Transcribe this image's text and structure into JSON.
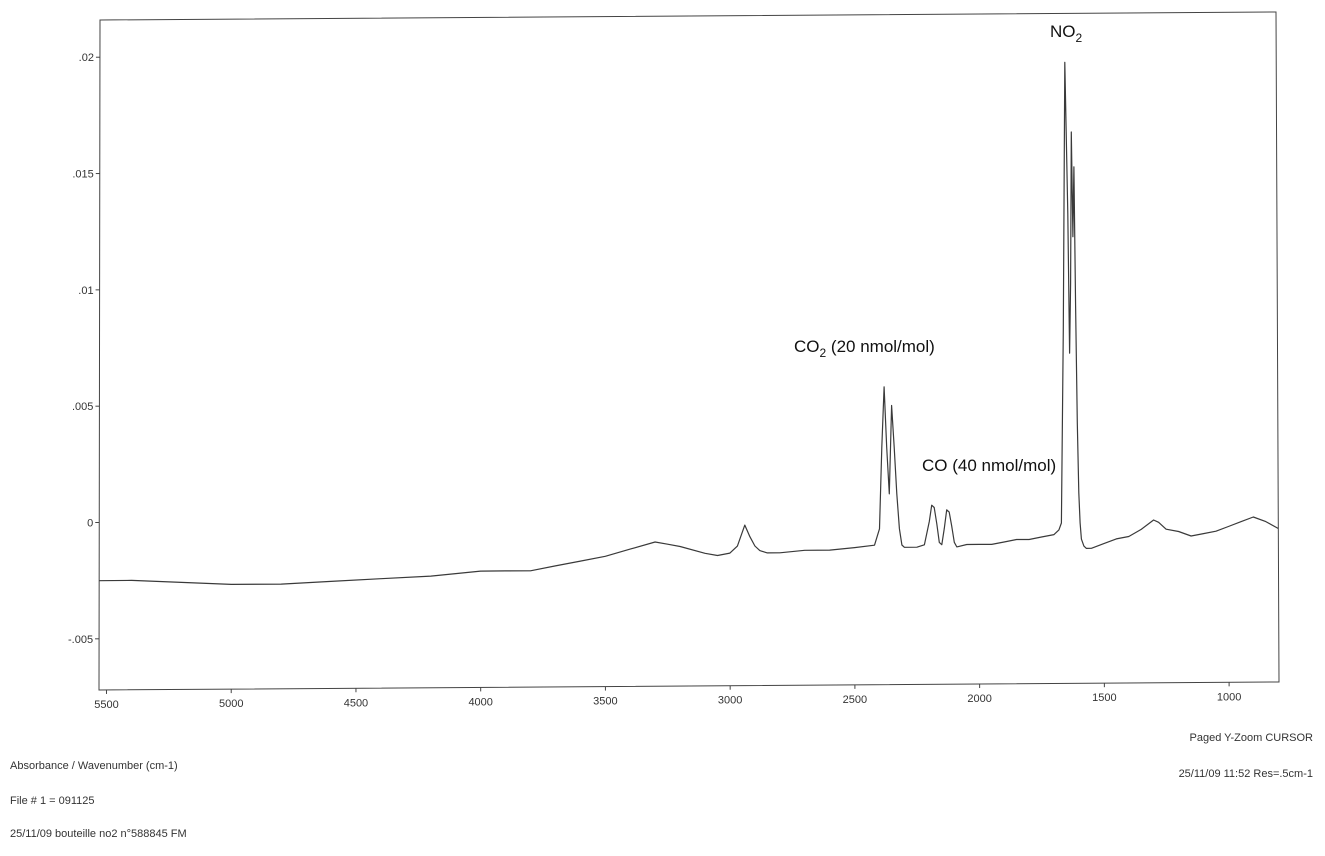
{
  "chart_data": {
    "type": "line",
    "title": "",
    "xlabel": "",
    "ylabel": "",
    "x_reversed": true,
    "xlim": [
      5530,
      800
    ],
    "ylim": [
      -0.0072,
      0.0216
    ],
    "x_ticks": [
      {
        "value": 5500,
        "label": "5500"
      },
      {
        "value": 5000,
        "label": "5000"
      },
      {
        "value": 4500,
        "label": "4500"
      },
      {
        "value": 4000,
        "label": "4000"
      },
      {
        "value": 3500,
        "label": "3500"
      },
      {
        "value": 3000,
        "label": "3000"
      },
      {
        "value": 2500,
        "label": "2500"
      },
      {
        "value": 2000,
        "label": "2000"
      },
      {
        "value": 1500,
        "label": "1500"
      },
      {
        "value": 1000,
        "label": "1000"
      }
    ],
    "y_ticks": [
      {
        "value": 0.02,
        "label": ".02"
      },
      {
        "value": 0.015,
        "label": ".015"
      },
      {
        "value": 0.01,
        "label": ".01"
      },
      {
        "value": 0.005,
        "label": ".005"
      },
      {
        "value": 0,
        "label": "0"
      },
      {
        "value": -0.005,
        "label": "-.005"
      }
    ],
    "grid": false,
    "series": [
      {
        "color": "#3a3a3a",
        "x": [
          5530,
          5400,
          5200,
          5000,
          4800,
          4600,
          4400,
          4200,
          4000,
          3900,
          3800,
          3700,
          3600,
          3500,
          3400,
          3300,
          3250,
          3200,
          3100,
          3050,
          3000,
          2970,
          2940,
          2920,
          2900,
          2880,
          2850,
          2800,
          2700,
          2600,
          2500,
          2420,
          2400,
          2390,
          2380,
          2370,
          2360,
          2350,
          2340,
          2330,
          2320,
          2310,
          2300,
          2250,
          2220,
          2200,
          2190,
          2180,
          2170,
          2160,
          2150,
          2140,
          2130,
          2120,
          2110,
          2100,
          2090,
          2050,
          2000,
          1950,
          1900,
          1850,
          1800,
          1750,
          1700,
          1680,
          1670,
          1660,
          1650,
          1640,
          1635,
          1630,
          1625,
          1620,
          1615,
          1610,
          1605,
          1600,
          1595,
          1590,
          1580,
          1570,
          1550,
          1500,
          1450,
          1400,
          1350,
          1300,
          1280,
          1250,
          1200,
          1150,
          1100,
          1050,
          1000,
          950,
          900,
          850,
          800
        ],
        "y": [
          -0.0025,
          -0.0025,
          -0.0026,
          -0.0027,
          -0.0027,
          -0.0026,
          -0.0025,
          -0.0024,
          -0.0022,
          -0.0022,
          -0.0022,
          -0.002,
          -0.0018,
          -0.0016,
          -0.0013,
          -0.001,
          -0.0011,
          -0.0012,
          -0.0015,
          -0.0016,
          -0.0015,
          -0.0012,
          -0.0003,
          -0.0008,
          -0.0012,
          -0.0014,
          -0.0015,
          -0.0015,
          -0.0014,
          -0.0014,
          -0.0013,
          -0.0012,
          -0.0005,
          0.003,
          0.0056,
          0.003,
          0.001,
          0.0048,
          0.003,
          0.001,
          -0.0005,
          -0.0012,
          -0.0013,
          -0.0013,
          -0.0012,
          -0.0002,
          0.0005,
          0.0004,
          -0.0003,
          -0.0011,
          -0.0012,
          -0.0005,
          0.0003,
          0.0002,
          -0.0004,
          -0.0011,
          -0.0013,
          -0.0012,
          -0.0012,
          -0.0012,
          -0.0011,
          -0.001,
          -0.001,
          -0.0009,
          -0.0008,
          -0.0006,
          -0.0003,
          0.008,
          0.0195,
          0.013,
          0.007,
          0.01,
          0.0165,
          0.012,
          0.015,
          0.009,
          0.004,
          0.001,
          -0.0003,
          -0.001,
          -0.0013,
          -0.0014,
          -0.0014,
          -0.0012,
          -0.001,
          -0.0009,
          -0.0006,
          -0.0002,
          -0.0003,
          -0.0006,
          -0.0007,
          -0.0009,
          -0.0008,
          -0.0007,
          -0.0005,
          -0.0003,
          -0.0001,
          -0.0003,
          -0.0006
        ]
      }
    ],
    "annotations": [
      {
        "base": "NO",
        "sub": "2",
        "rest": ""
      },
      {
        "base": "CO",
        "sub": "2",
        "rest": " (20 nmol/mol)"
      },
      {
        "base": "CO (40 nmol/mol)",
        "sub": "",
        "rest": ""
      }
    ]
  },
  "footer": {
    "axis_caption": "Absorbance / Wavenumber (cm-1)",
    "file_line": "File # 1 = 091125",
    "sample_line": "25/11/09 bouteille no2 n°588845 FM",
    "mode_line": "Paged  Y-Zoom CURSOR",
    "date_res_line": "25/11/09  11:52  Res=.5cm-1"
  }
}
